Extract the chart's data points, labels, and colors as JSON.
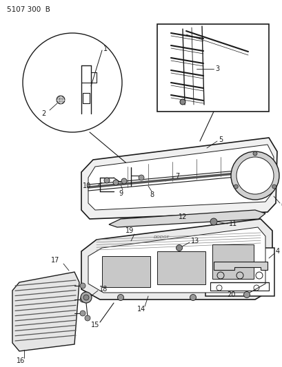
{
  "title": "5107 300  B",
  "bg_color": "#ffffff",
  "line_color": "#1a1a1a",
  "text_color": "#1a1a1a",
  "fig_w": 4.1,
  "fig_h": 5.33,
  "dpi": 100
}
